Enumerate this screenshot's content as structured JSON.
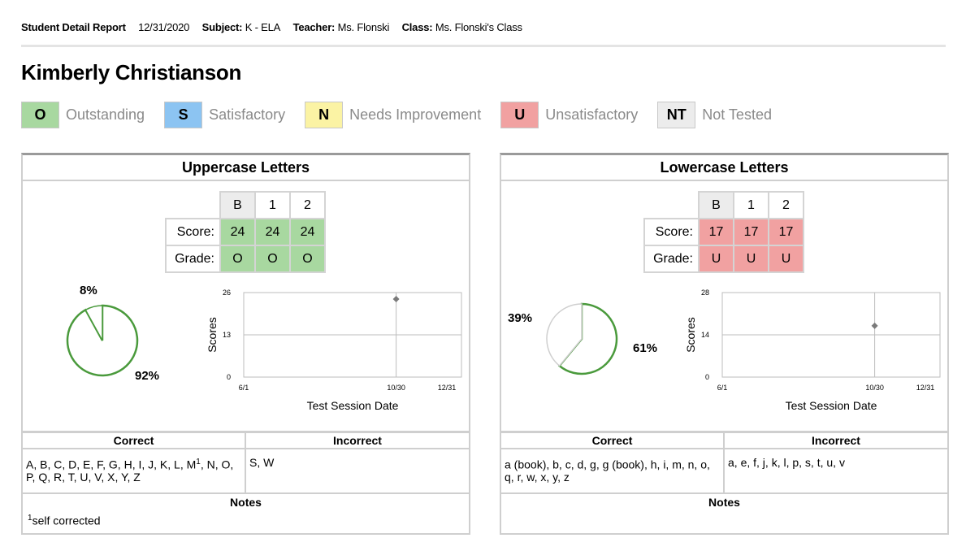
{
  "header": {
    "report_title": "Student Detail Report",
    "date": "12/31/2020",
    "subject_label": "Subject:",
    "subject_value": "K - ELA",
    "teacher_label": "Teacher:",
    "teacher_value": "Ms. Flonski",
    "class_label": "Class:",
    "class_value": "Ms. Flonski's Class"
  },
  "student_name": "Kimberly Christianson",
  "legend": [
    {
      "code": "O",
      "label": "Outstanding",
      "color": "#a8d8a0"
    },
    {
      "code": "S",
      "label": "Satisfactory",
      "color": "#8cc4f2"
    },
    {
      "code": "N",
      "label": "Needs Improvement",
      "color": "#fbf3a4"
    },
    {
      "code": "U",
      "label": "Unsatisfactory",
      "color": "#f1a1a1"
    },
    {
      "code": "NT",
      "label": "Not Tested",
      "color": "#ececec"
    }
  ],
  "panels": [
    {
      "title": "Uppercase Letters",
      "columns": [
        "B",
        "1",
        "2"
      ],
      "score_label": "Score:",
      "scores": [
        "24",
        "24",
        "24"
      ],
      "grade_label": "Grade:",
      "grades": [
        "O",
        "O",
        "O"
      ],
      "pie": {
        "small_pct": "8%",
        "large_pct": "92%",
        "small_value": 8,
        "color": "#4a9a3c"
      },
      "chart_data": {
        "type": "scatter",
        "ylabel": "Scores",
        "xlabel": "Test Session Date",
        "yticks": [
          "0",
          "13",
          "26"
        ],
        "ylim": [
          0,
          26
        ],
        "xticks": [
          "6/1",
          "10/30",
          "12/31"
        ],
        "points": [
          {
            "x": "10/30",
            "y": 24
          }
        ]
      },
      "correct_header": "Correct",
      "incorrect_header": "Incorrect",
      "correct_line1": "A, B, C, D, E, F, G, H, I, J, K, L, M",
      "correct_sup": "1",
      "correct_line1_end": ", N, O,",
      "correct_line2": "P, Q, R, T, U, V, X, Y, Z",
      "incorrect": "S, W",
      "notes_header": "Notes",
      "note_sup": "1",
      "note_text": "self corrected"
    },
    {
      "title": "Lowercase Letters",
      "columns": [
        "B",
        "1",
        "2"
      ],
      "score_label": "Score:",
      "scores": [
        "17",
        "17",
        "17"
      ],
      "grade_label": "Grade:",
      "grades": [
        "U",
        "U",
        "U"
      ],
      "pie": {
        "small_pct": "39%",
        "large_pct": "61%",
        "small_value": 39,
        "color": "#4a9a3c"
      },
      "chart_data": {
        "type": "scatter",
        "ylabel": "Scores",
        "xlabel": "Test Session Date",
        "yticks": [
          "0",
          "14",
          "28"
        ],
        "ylim": [
          0,
          28
        ],
        "xticks": [
          "6/1",
          "10/30",
          "12/31"
        ],
        "points": [
          {
            "x": "10/30",
            "y": 17
          }
        ]
      },
      "correct_header": "Correct",
      "incorrect_header": "Incorrect",
      "correct_line1": "a (book), b, c, d, g, g (book), h, i, m, n, o,",
      "correct_sup": "",
      "correct_line1_end": "",
      "correct_line2": "q, r, w, x, y, z",
      "incorrect": "a, e, f, j, k, l, p, s, t, u, v",
      "notes_header": "Notes",
      "note_sup": "",
      "note_text": ""
    }
  ]
}
